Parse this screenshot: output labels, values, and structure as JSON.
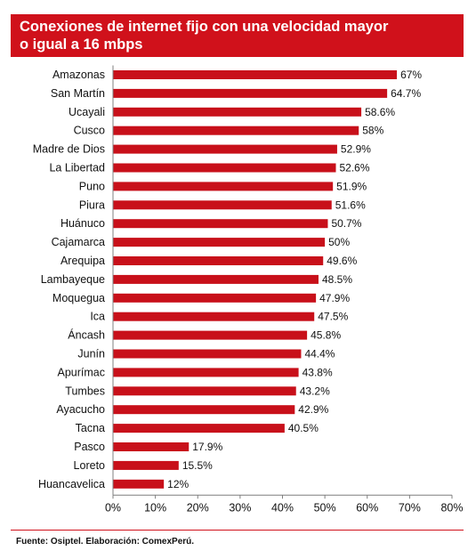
{
  "title": {
    "line1": "Conexiones de internet fijo con una velocidad mayor",
    "line2": "o igual a 16 mbps"
  },
  "source_note": "Fuente:  Osiptel. Elaboración:  ComexPerú.",
  "colors": {
    "accent": "#d0111b",
    "bar": "#c8101a",
    "text": "#111111",
    "axis": "#7f7f7f"
  },
  "chart_data": {
    "type": "bar",
    "orientation": "horizontal",
    "title": "Conexiones de internet fijo con una velocidad mayor o igual a 16 mbps",
    "categories": [
      "Amazonas",
      "San Martín",
      "Ucayali",
      "Cusco",
      "Madre de Dios",
      "La Libertad",
      "Puno",
      "Piura",
      "Huánuco",
      "Cajamarca",
      "Arequipa",
      "Lambayeque",
      "Moquegua",
      "Ica",
      "Áncash",
      "Junín",
      "Apurímac",
      "Tumbes",
      "Ayacucho",
      "Tacna",
      "Pasco",
      "Loreto",
      "Huancavelica"
    ],
    "values": [
      67,
      64.7,
      58.6,
      58,
      52.9,
      52.6,
      51.9,
      51.6,
      50.7,
      50,
      49.6,
      48.5,
      47.9,
      47.5,
      45.8,
      44.4,
      43.8,
      43.2,
      42.9,
      40.5,
      17.9,
      15.5,
      12
    ],
    "value_labels": [
      "67%",
      "64.7%",
      "58.6%",
      "58%",
      "52.9%",
      "52.6%",
      "51.9%",
      "51.6%",
      "50.7%",
      "50%",
      "49.6%",
      "48.5%",
      "47.9%",
      "47.5%",
      "45.8%",
      "44.4%",
      "43.8%",
      "43.2%",
      "42.9%",
      "40.5%",
      "17.9%",
      "15.5%",
      "12%"
    ],
    "xlim": [
      0,
      80
    ],
    "xticks": [
      "0%",
      "10%",
      "20%",
      "30%",
      "40%",
      "50%",
      "60%",
      "70%",
      "80%"
    ],
    "xlabel": "",
    "ylabel": "",
    "grid": false,
    "legend": "none"
  }
}
